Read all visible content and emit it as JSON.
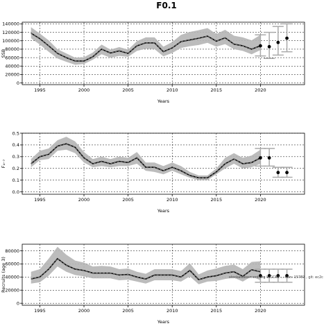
{
  "title": "F0.1",
  "watermark": "stockassessment.org  WGCSE  ... Run: 15787 , git: ec2c",
  "colors": {
    "band": "#b5b5b5",
    "line": "#000000",
    "dash": "#3a3a3a",
    "error": "#aaaaaa",
    "grid": "#000000"
  },
  "chart_data": [
    {
      "type": "line",
      "ylabel": "SSB",
      "xlabel": "Years",
      "xlim": [
        1993,
        2025
      ],
      "ylim": [
        -4000,
        144000
      ],
      "x_ticks": [
        1995,
        2000,
        2005,
        2010,
        2015,
        2020
      ],
      "y_ticks": [
        0,
        20000,
        40000,
        60000,
        80000,
        100000,
        120000,
        140000
      ],
      "grid": true,
      "series": [
        {
          "x": [
            1994,
            1995,
            1996,
            1997,
            1998,
            1999,
            2000,
            2001,
            2002,
            2003,
            2004,
            2005,
            2006,
            2007,
            2008,
            2009,
            2010,
            2011,
            2012,
            2013,
            2014,
            2015,
            2016,
            2017,
            2018,
            2019,
            2020
          ],
          "values": [
            118000,
            105000,
            88000,
            70000,
            60000,
            52000,
            52000,
            62000,
            80000,
            71000,
            76000,
            70000,
            88000,
            95000,
            95000,
            74000,
            83000,
            98000,
            102000,
            106000,
            111000,
            99000,
            107000,
            92000,
            88000,
            80000,
            88000
          ],
          "lower": [
            106000,
            91000,
            74000,
            58000,
            50000,
            43000,
            45000,
            55000,
            68000,
            60000,
            64000,
            62000,
            76000,
            81000,
            80000,
            63000,
            71000,
            83000,
            87000,
            90000,
            95000,
            86000,
            92000,
            80000,
            76000,
            68000,
            78000
          ],
          "upper": [
            132000,
            117000,
            101000,
            80000,
            70000,
            60000,
            61000,
            72000,
            91000,
            79000,
            85000,
            79000,
            99000,
            108000,
            108000,
            86000,
            97000,
            114000,
            121000,
            125000,
            130000,
            116000,
            126000,
            112000,
            108000,
            101000,
            114000
          ]
        }
      ],
      "forecast": {
        "x": [
          2020,
          2021,
          2022,
          2023
        ],
        "values": [
          88000,
          86000,
          96000,
          106000
        ],
        "lower": [
          64000,
          58000,
          66000,
          74000
        ],
        "upper": [
          114000,
          120000,
          134000,
          140000
        ]
      }
    },
    {
      "type": "line",
      "ylabel": "F₄₋₇",
      "xlabel": "Years",
      "xlim": [
        1993,
        2025
      ],
      "ylim": [
        -0.02,
        0.5
      ],
      "x_ticks": [
        1995,
        2000,
        2005,
        2010,
        2015,
        2020
      ],
      "y_ticks": [
        0.0,
        0.1,
        0.2,
        0.3,
        0.4,
        0.5
      ],
      "y_tick_labels": [
        "0.0",
        "0.1",
        "0.2",
        "0.3",
        "0.4",
        "0.5"
      ],
      "grid": true,
      "series": [
        {
          "x": [
            1994,
            1995,
            1996,
            1997,
            1998,
            1999,
            2000,
            2001,
            2002,
            2003,
            2004,
            2005,
            2006,
            2007,
            2008,
            2009,
            2010,
            2011,
            2012,
            2013,
            2014,
            2015,
            2016,
            2017,
            2018,
            2019,
            2020
          ],
          "values": [
            0.24,
            0.3,
            0.32,
            0.39,
            0.41,
            0.38,
            0.29,
            0.24,
            0.26,
            0.24,
            0.26,
            0.25,
            0.29,
            0.21,
            0.21,
            0.18,
            0.21,
            0.18,
            0.14,
            0.12,
            0.12,
            0.17,
            0.24,
            0.28,
            0.24,
            0.25,
            0.29
          ],
          "lower": [
            0.21,
            0.27,
            0.28,
            0.35,
            0.36,
            0.33,
            0.25,
            0.21,
            0.22,
            0.21,
            0.22,
            0.22,
            0.24,
            0.18,
            0.17,
            0.15,
            0.18,
            0.15,
            0.12,
            0.1,
            0.1,
            0.15,
            0.2,
            0.24,
            0.2,
            0.21,
            0.24
          ],
          "upper": [
            0.28,
            0.35,
            0.37,
            0.44,
            0.47,
            0.43,
            0.34,
            0.28,
            0.3,
            0.28,
            0.3,
            0.29,
            0.34,
            0.25,
            0.25,
            0.22,
            0.25,
            0.22,
            0.17,
            0.14,
            0.14,
            0.2,
            0.29,
            0.33,
            0.29,
            0.31,
            0.36
          ]
        }
      ],
      "forecast": {
        "x": [
          2020,
          2021,
          2022,
          2023
        ],
        "values": [
          0.29,
          0.29,
          0.165,
          0.165
        ],
        "lower": [
          0.22,
          0.22,
          0.125,
          0.125
        ],
        "upper": [
          0.37,
          0.37,
          0.21,
          0.21
        ]
      }
    },
    {
      "type": "line",
      "ylabel": "Recruits (age 3)",
      "xlabel": "Years",
      "xlim": [
        1993,
        2025
      ],
      "ylim": [
        -3000,
        90000
      ],
      "x_ticks": [
        1995,
        2000,
        2005,
        2010,
        2015,
        2020
      ],
      "y_ticks": [
        0,
        20000,
        40000,
        60000,
        80000
      ],
      "grid": true,
      "series": [
        {
          "x": [
            1994,
            1995,
            1996,
            1997,
            1998,
            1999,
            2000,
            2001,
            2002,
            2003,
            2004,
            2005,
            2006,
            2007,
            2008,
            2009,
            2010,
            2011,
            2012,
            2013,
            2014,
            2015,
            2016,
            2017,
            2018,
            2019,
            2020
          ],
          "values": [
            37000,
            40000,
            52000,
            68000,
            58000,
            52000,
            50000,
            46000,
            46000,
            46000,
            43000,
            44000,
            40000,
            37000,
            43000,
            43000,
            43000,
            40000,
            50000,
            36000,
            40000,
            42000,
            46000,
            48000,
            41000,
            51000,
            48000
          ],
          "lower": [
            30000,
            32000,
            42000,
            56000,
            48000,
            43000,
            41000,
            38000,
            38000,
            38000,
            35000,
            36000,
            33000,
            30000,
            35000,
            35000,
            35000,
            33000,
            41000,
            29000,
            33000,
            34000,
            37000,
            39000,
            33000,
            41000,
            35000
          ],
          "upper": [
            48000,
            52000,
            68000,
            86000,
            74000,
            65000,
            62000,
            56000,
            57000,
            56000,
            52000,
            53000,
            48000,
            45000,
            52000,
            52000,
            52000,
            49000,
            61000,
            44000,
            50000,
            53000,
            57000,
            59000,
            52000,
            63000,
            64000
          ]
        }
      ],
      "forecast": {
        "x": [
          2020,
          2021,
          2022,
          2023
        ],
        "values": [
          42000,
          42000,
          42000,
          42000
        ],
        "lower": [
          32000,
          32000,
          32000,
          32000
        ],
        "upper": [
          52000,
          52000,
          52000,
          52000
        ]
      }
    }
  ]
}
